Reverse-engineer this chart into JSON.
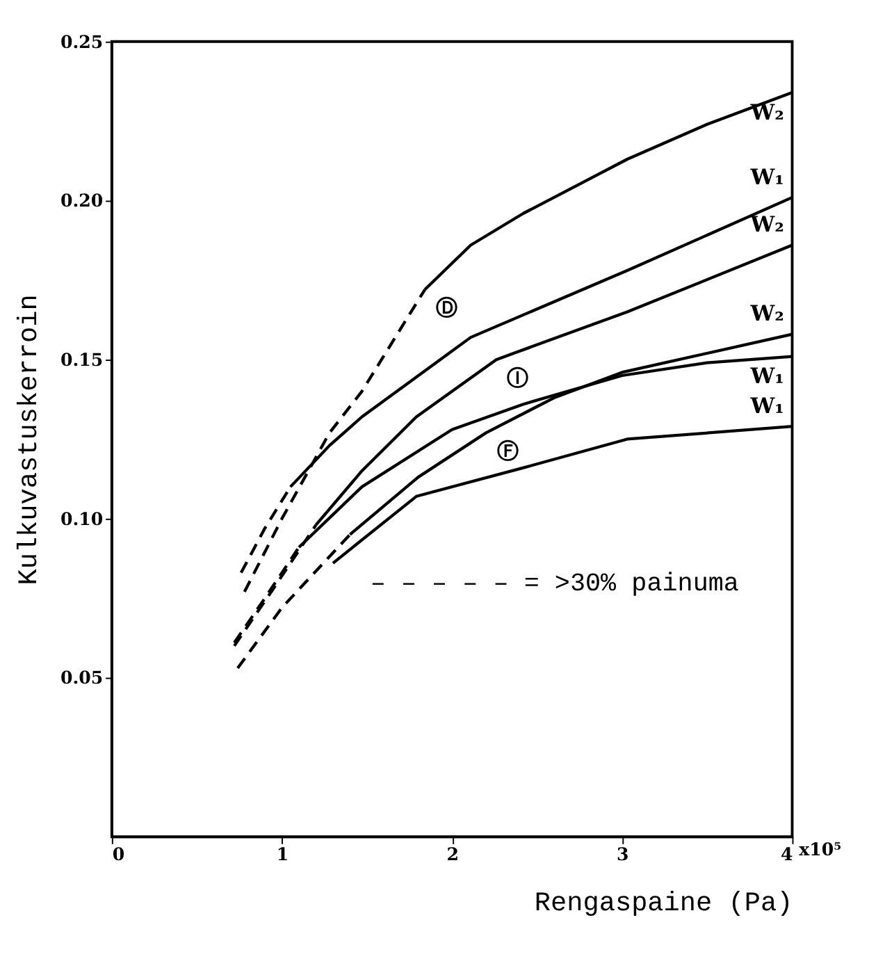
{
  "chart_data": {
    "type": "line",
    "xlabel": "Rengaspaine (Pa)",
    "ylabel": "Kulkuvastuskerroin",
    "xlim": [
      0,
      4
    ],
    "ylim": [
      0,
      0.25
    ],
    "xticks": [
      0,
      1,
      2,
      3,
      4
    ],
    "yticks": [
      {
        "value": 0.05,
        "label": "0.05"
      },
      {
        "value": 0.1,
        "label": "0.10"
      },
      {
        "value": 0.15,
        "label": "0.15"
      },
      {
        "value": 0.2,
        "label": "0.20"
      },
      {
        "value": 0.25,
        "label": "0.25"
      }
    ],
    "grid": false,
    "marker": "none",
    "series": [
      {
        "color": "#000000",
        "line_style": "dashed",
        "x": [
          0.78,
          1.0,
          1.28,
          1.47,
          1.84
        ],
        "values": [
          0.077,
          0.1,
          0.127,
          0.14,
          0.172
        ]
      },
      {
        "color": "#000000",
        "line_style": "solid",
        "x": [
          1.84,
          2.11,
          2.42,
          3.03,
          3.5,
          4.0
        ],
        "values": [
          0.172,
          0.186,
          0.196,
          0.213,
          0.224,
          0.234
        ]
      },
      {
        "color": "#000000",
        "line_style": "dashed",
        "x": [
          0.76,
          0.9,
          1.05
        ],
        "values": [
          0.083,
          0.097,
          0.11
        ]
      },
      {
        "color": "#000000",
        "line_style": "solid",
        "x": [
          1.05,
          1.28,
          1.47,
          2.11,
          3.03,
          4.0
        ],
        "values": [
          0.11,
          0.123,
          0.132,
          0.157,
          0.178,
          0.201
        ]
      },
      {
        "color": "#000000",
        "line_style": "dashed",
        "x": [
          0.72,
          0.95,
          1.2
        ],
        "values": [
          0.06,
          0.078,
          0.098
        ]
      },
      {
        "color": "#000000",
        "line_style": "solid",
        "x": [
          1.2,
          1.47,
          1.79,
          2.26,
          3.03,
          4.0
        ],
        "values": [
          0.098,
          0.115,
          0.132,
          0.15,
          0.165,
          0.186
        ]
      },
      {
        "color": "#000000",
        "line_style": "dashed",
        "x": [
          0.72,
          0.9,
          1.1
        ],
        "values": [
          0.061,
          0.075,
          0.091
        ]
      },
      {
        "color": "#000000",
        "line_style": "solid",
        "x": [
          1.1,
          1.47,
          2.0,
          2.42,
          3.0,
          3.5,
          4.0
        ],
        "values": [
          0.091,
          0.11,
          0.128,
          0.136,
          0.145,
          0.149,
          0.151
        ]
      },
      {
        "color": "#000000",
        "line_style": "dashed",
        "x": [
          0.74,
          1.0,
          1.4
        ],
        "values": [
          0.053,
          0.072,
          0.095
        ]
      },
      {
        "color": "#000000",
        "line_style": "solid",
        "x": [
          1.4,
          1.8,
          2.2,
          2.6,
          3.0,
          3.5,
          4.0
        ],
        "values": [
          0.095,
          0.113,
          0.127,
          0.138,
          0.146,
          0.152,
          0.158
        ]
      },
      {
        "color": "#000000",
        "line_style": "solid",
        "x": [
          1.3,
          1.79,
          2.42,
          3.03,
          4.0
        ],
        "values": [
          0.086,
          0.107,
          0.116,
          0.125,
          0.129
        ]
      }
    ],
    "annotations": [
      {
        "text": "W₂",
        "x": 4.0,
        "y": 0.234
      },
      {
        "text": "W₁",
        "x": 4.0,
        "y": 0.201
      },
      {
        "text": "W₂",
        "x": 4.0,
        "y": 0.186
      },
      {
        "text": "W₂",
        "x": 4.0,
        "y": 0.158
      },
      {
        "text": "W₁",
        "x": 4.0,
        "y": 0.151
      },
      {
        "text": "W₁",
        "x": 4.0,
        "y": 0.129
      },
      {
        "text": "Ⓓ",
        "x": 1.84,
        "y": 0.172
      },
      {
        "text": "Ⓘ",
        "x": 2.26,
        "y": 0.15
      },
      {
        "text": "Ⓕ",
        "x": 2.2,
        "y": 0.127
      },
      "– – – – – = >30% painuma",
      "x10⁵"
    ]
  }
}
